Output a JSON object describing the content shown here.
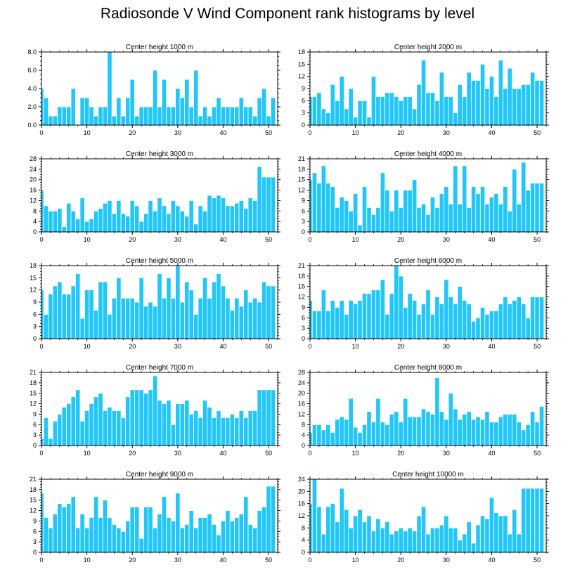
{
  "title": "Radiosonde V Wind Component rank histograms by level",
  "colors": {
    "bar": "#22c7f7",
    "bar_edge": "#ffffff",
    "axis": "#000000"
  },
  "chart_data": [
    {
      "type": "bar",
      "title": "Center height 1000 m",
      "xlim": [
        0,
        52
      ],
      "ylim": [
        0,
        8
      ],
      "xticks": [
        0,
        10,
        20,
        30,
        40,
        50
      ],
      "yticks": [
        0,
        2,
        4,
        6,
        8
      ],
      "ytick_labels": [
        "0.0",
        "2.0",
        "4.0",
        "6.0",
        "8.0"
      ],
      "values": [
        4,
        3,
        1,
        1,
        2,
        2,
        2,
        4,
        0,
        3,
        3,
        2,
        1,
        2,
        2,
        8,
        1,
        3,
        1,
        3,
        5,
        1,
        2,
        2,
        2,
        6,
        2,
        5,
        2,
        2,
        4,
        3,
        5,
        2,
        6,
        1,
        2,
        1,
        2,
        3,
        2,
        2,
        2,
        2,
        3,
        2,
        2,
        1,
        3,
        4,
        1,
        3
      ]
    },
    {
      "type": "bar",
      "title": "Center height 2000 m",
      "xlim": [
        0,
        52
      ],
      "ylim": [
        0,
        18
      ],
      "xticks": [
        0,
        10,
        20,
        30,
        40,
        50
      ],
      "yticks": [
        0,
        3,
        6,
        9,
        12,
        15,
        18
      ],
      "ytick_labels": [
        "0",
        "3",
        "6",
        "9",
        "12",
        "15",
        "18"
      ],
      "values": [
        7,
        7,
        8,
        4,
        3,
        10,
        6,
        12,
        4,
        9,
        2,
        6,
        6,
        2,
        12,
        7,
        7,
        8,
        8,
        7,
        6,
        7,
        7,
        4,
        10,
        16,
        8,
        8,
        6,
        13,
        7,
        7,
        3,
        10,
        7,
        13,
        11,
        11,
        15,
        9,
        12,
        7,
        16,
        9,
        14,
        9,
        9,
        10,
        10,
        13,
        11,
        11
      ]
    },
    {
      "type": "bar",
      "title": "Center height 3000 m",
      "xlim": [
        0,
        52
      ],
      "ylim": [
        0,
        28
      ],
      "xticks": [
        0,
        10,
        20,
        30,
        40,
        50
      ],
      "yticks": [
        0,
        4,
        8,
        12,
        16,
        20,
        24,
        28
      ],
      "ytick_labels": [
        "0",
        "4",
        "8",
        "12",
        "16",
        "20",
        "24",
        "28"
      ],
      "values": [
        16,
        10,
        8,
        8,
        9,
        2,
        11,
        8,
        5,
        13,
        4,
        5,
        8,
        9,
        11,
        12,
        7,
        12,
        7,
        6,
        12,
        10,
        4,
        7,
        12,
        8,
        13,
        10,
        7,
        12,
        10,
        8,
        6,
        12,
        3,
        10,
        8,
        14,
        13,
        14,
        13,
        10,
        10,
        11,
        12,
        9,
        13,
        12,
        25,
        21,
        21,
        21
      ]
    },
    {
      "type": "bar",
      "title": "Center height 4000 m",
      "xlim": [
        0,
        52
      ],
      "ylim": [
        0,
        21
      ],
      "xticks": [
        0,
        10,
        20,
        30,
        40,
        50
      ],
      "yticks": [
        0,
        3,
        6,
        9,
        12,
        15,
        18,
        21
      ],
      "ytick_labels": [
        "0",
        "3",
        "6",
        "9",
        "12",
        "15",
        "18",
        "21"
      ],
      "values": [
        15,
        17,
        14,
        19,
        14,
        13,
        7,
        10,
        9,
        6,
        11,
        2,
        13,
        7,
        5,
        7,
        17,
        12,
        6,
        12,
        7,
        12,
        12,
        15,
        7,
        8,
        5,
        10,
        7,
        11,
        13,
        8,
        19,
        8,
        19,
        7,
        13,
        11,
        13,
        8,
        10,
        11,
        8,
        13,
        6,
        18,
        8,
        20,
        12,
        14,
        14,
        14
      ]
    },
    {
      "type": "bar",
      "title": "Center height 5000 m",
      "xlim": [
        0,
        52
      ],
      "ylim": [
        0,
        18
      ],
      "xticks": [
        0,
        10,
        20,
        30,
        40,
        50
      ],
      "yticks": [
        0,
        3,
        6,
        9,
        12,
        15,
        18
      ],
      "ytick_labels": [
        "0",
        "3",
        "6",
        "9",
        "12",
        "15",
        "18"
      ],
      "values": [
        12,
        6,
        11,
        13,
        14,
        11,
        11,
        13,
        16,
        5,
        12,
        12,
        7,
        14,
        14,
        6,
        10,
        15,
        10,
        10,
        10,
        9,
        15,
        8,
        9,
        8,
        16,
        10,
        15,
        10,
        18,
        9,
        14,
        12,
        6,
        10,
        15,
        10,
        14,
        16,
        13,
        10,
        7,
        10,
        8,
        12,
        9,
        10,
        9,
        14,
        13,
        13
      ]
    },
    {
      "type": "bar",
      "title": "Center height 6000 m",
      "xlim": [
        0,
        52
      ],
      "ylim": [
        0,
        21
      ],
      "xticks": [
        0,
        10,
        20,
        30,
        40,
        50
      ],
      "yticks": [
        0,
        3,
        6,
        9,
        12,
        15,
        18,
        21
      ],
      "ytick_labels": [
        "0",
        "3",
        "6",
        "9",
        "12",
        "15",
        "18",
        "21"
      ],
      "values": [
        11,
        8,
        8,
        14,
        8,
        11,
        9,
        11,
        7,
        11,
        10,
        11,
        13,
        13,
        14,
        14,
        17,
        7,
        13,
        21,
        18,
        9,
        13,
        11,
        7,
        10,
        14,
        7,
        12,
        10,
        17,
        12,
        10,
        15,
        11,
        10,
        5,
        6,
        9,
        7,
        8,
        8,
        10,
        12,
        10,
        11,
        12,
        10,
        6,
        12,
        12,
        12
      ]
    },
    {
      "type": "bar",
      "title": "Center height 7000 m",
      "xlim": [
        0,
        52
      ],
      "ylim": [
        0,
        21
      ],
      "xticks": [
        0,
        10,
        20,
        30,
        40,
        50
      ],
      "yticks": [
        0,
        3,
        6,
        9,
        12,
        15,
        18,
        21
      ],
      "ytick_labels": [
        "0",
        "3",
        "6",
        "9",
        "12",
        "15",
        "18",
        "21"
      ],
      "values": [
        2,
        8,
        2,
        7,
        9,
        11,
        12,
        14,
        16,
        7,
        10,
        12,
        14,
        15,
        10,
        11,
        10,
        10,
        8,
        14,
        16,
        16,
        16,
        15,
        16,
        20,
        13,
        12,
        13,
        6,
        12,
        12,
        13,
        9,
        10,
        8,
        13,
        11,
        8,
        10,
        8,
        8,
        9,
        8,
        10,
        8,
        10,
        10,
        16,
        16,
        16,
        16
      ]
    },
    {
      "type": "bar",
      "title": "Center height 8000 m",
      "xlim": [
        0,
        52
      ],
      "ylim": [
        0,
        28
      ],
      "xticks": [
        0,
        10,
        20,
        30,
        40,
        50
      ],
      "yticks": [
        0,
        4,
        8,
        12,
        16,
        20,
        24,
        28
      ],
      "ytick_labels": [
        "0",
        "4",
        "8",
        "12",
        "16",
        "20",
        "24",
        "28"
      ],
      "values": [
        5,
        8,
        8,
        6,
        8,
        5,
        10,
        11,
        10,
        18,
        7,
        5,
        8,
        13,
        9,
        18,
        9,
        8,
        12,
        13,
        9,
        18,
        11,
        11,
        11,
        14,
        13,
        12,
        26,
        13,
        10,
        20,
        14,
        10,
        12,
        13,
        10,
        11,
        10,
        13,
        9,
        9,
        11,
        12,
        12,
        12,
        9,
        6,
        8,
        13,
        9,
        15
      ]
    },
    {
      "type": "bar",
      "title": "Center height 9000 m",
      "xlim": [
        0,
        52
      ],
      "ylim": [
        0,
        21
      ],
      "xticks": [
        0,
        10,
        20,
        30,
        40,
        50
      ],
      "yticks": [
        0,
        3,
        6,
        9,
        12,
        15,
        18,
        21
      ],
      "ytick_labels": [
        "0",
        "3",
        "6",
        "9",
        "12",
        "15",
        "18",
        "21"
      ],
      "values": [
        17,
        10,
        7,
        11,
        14,
        13,
        14,
        16,
        7,
        11,
        7,
        10,
        16,
        10,
        15,
        10,
        8,
        7,
        6,
        9,
        13,
        13,
        4,
        13,
        13,
        7,
        11,
        16,
        10,
        9,
        17,
        7,
        8,
        12,
        7,
        10,
        10,
        11,
        8,
        5,
        9,
        12,
        9,
        10,
        11,
        16,
        8,
        7,
        12,
        13,
        19,
        19
      ]
    },
    {
      "type": "bar",
      "title": "Center height 10000 m",
      "xlim": [
        0,
        52
      ],
      "ylim": [
        0,
        24
      ],
      "xticks": [
        0,
        10,
        20,
        30,
        40,
        50
      ],
      "yticks": [
        0,
        4,
        8,
        12,
        16,
        20,
        24
      ],
      "ytick_labels": [
        "0",
        "4",
        "8",
        "12",
        "16",
        "20",
        "24"
      ],
      "values": [
        16,
        24,
        15,
        6,
        15,
        16,
        10,
        21,
        14,
        8,
        12,
        14,
        10,
        12,
        7,
        11,
        8,
        10,
        6,
        7,
        8,
        7,
        8,
        7,
        12,
        15,
        6,
        8,
        8,
        9,
        12,
        8,
        8,
        4,
        6,
        10,
        3,
        9,
        12,
        11,
        18,
        13,
        12,
        12,
        6,
        14,
        6,
        21,
        21,
        21,
        21,
        21
      ]
    }
  ]
}
